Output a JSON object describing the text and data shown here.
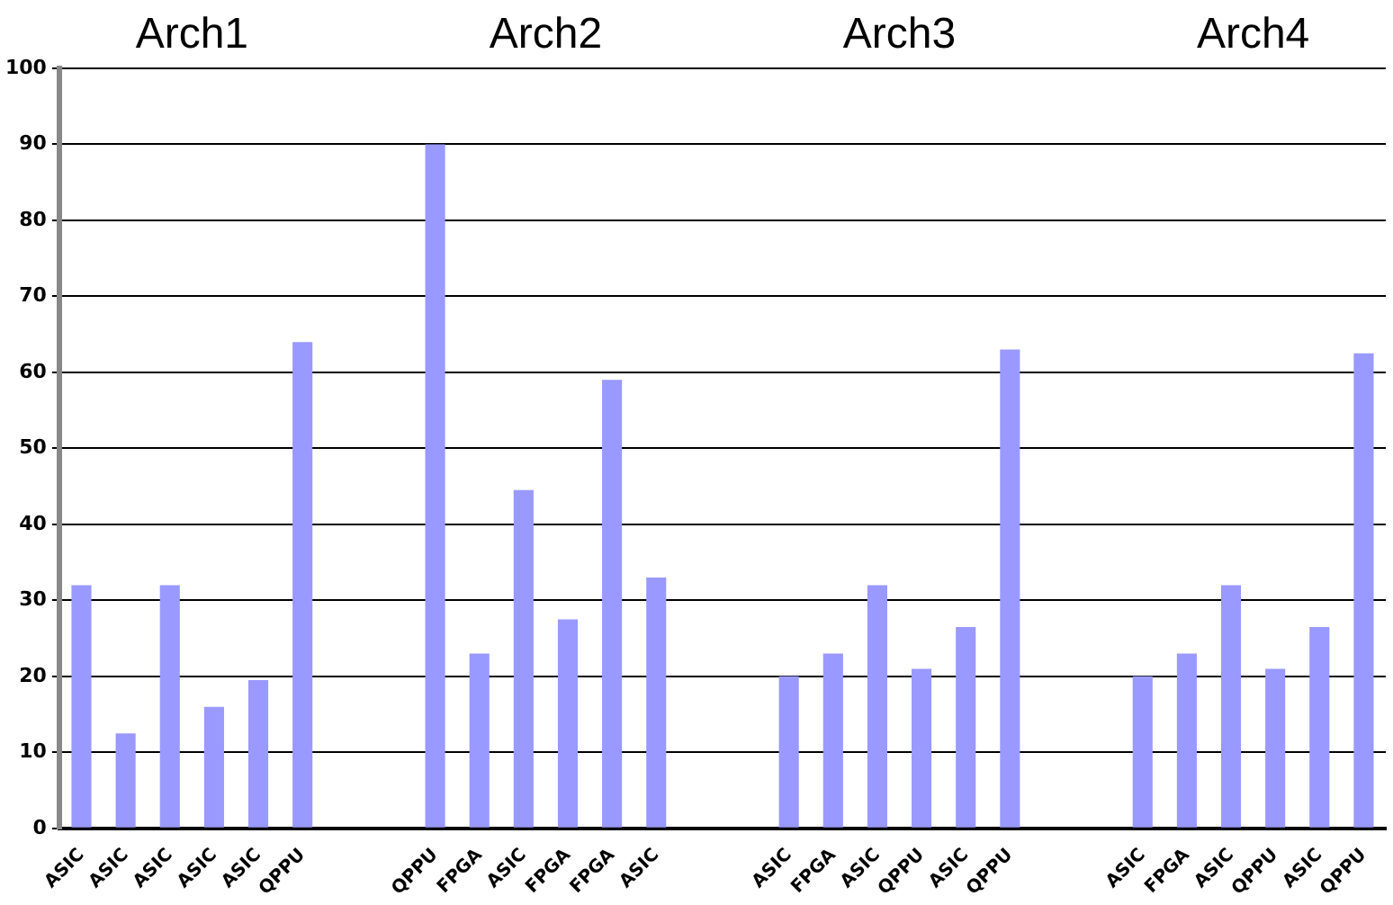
{
  "chart_data": {
    "type": "bar",
    "categories": [
      "ASIC",
      "ASIC",
      "ASIC",
      "ASIC",
      "ASIC",
      "QPPU",
      null,
      null,
      "QPPU",
      "FPGA",
      "ASIC",
      "FPGA",
      "FPGA",
      "ASIC",
      null,
      null,
      "ASIC",
      "FPGA",
      "ASIC",
      "QPPU",
      "ASIC",
      "QPPU",
      null,
      null,
      "ASIC",
      "FPGA",
      "ASIC",
      "QPPU",
      "ASIC",
      "QPPU"
    ],
    "values": [
      32,
      12.5,
      32,
      16,
      19.5,
      64,
      null,
      null,
      90,
      23,
      44.5,
      27.5,
      59,
      33,
      null,
      null,
      20,
      23,
      32,
      21,
      26.5,
      63,
      null,
      null,
      20,
      23,
      32,
      21,
      26.5,
      62.5
    ],
    "color": "#9999ff",
    "ylim": [
      0,
      100
    ],
    "yticks": [
      0,
      10,
      20,
      30,
      40,
      50,
      60,
      70,
      80,
      90,
      100
    ],
    "grid": "y",
    "legend": false,
    "annotations": [
      "Arch1",
      "Arch2",
      "Arch3",
      "Arch4"
    ]
  }
}
